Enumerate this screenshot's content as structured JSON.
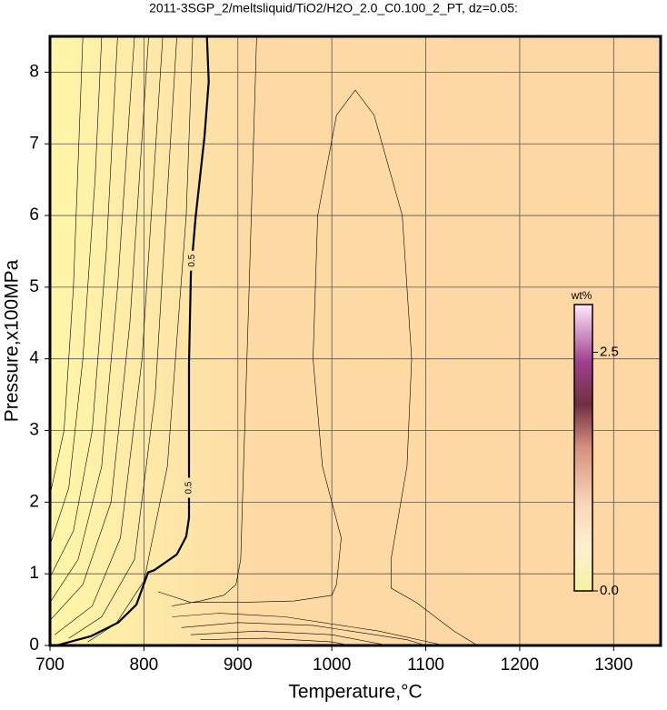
{
  "chart_data": {
    "type": "contour",
    "title": "2011-3SGP_2/meltsliquid/TiO2/H2O_2.0_C0.100_2_PT, dz=0.05:",
    "xlabel": "Temperature,°C",
    "ylabel": "Pressure,x100MPa",
    "xlim": [
      700,
      1350
    ],
    "ylim": [
      0,
      8.5
    ],
    "xticks": [
      700,
      800,
      900,
      1000,
      1100,
      1200,
      1300
    ],
    "yticks": [
      0,
      1,
      2,
      3,
      4,
      5,
      6,
      7,
      8
    ],
    "grid": true,
    "colorbar": {
      "label": "wt%",
      "lim": [
        0,
        3
      ],
      "ticks": [
        {
          "value": 0,
          "label": "0.0"
        },
        2.5
      ]
    },
    "contours": [
      {
        "level": 0.5,
        "bold": true,
        "x": [
          707,
          743.5,
          772.5,
          792,
          804.5,
          811,
          835,
          845,
          848,
          848,
          850,
          855,
          864.5,
          869,
          867
        ],
        "y": [
          0,
          0.13,
          0.32,
          0.57,
          1.02,
          1.05,
          1.27,
          1.52,
          1.78,
          3.94,
          5.2,
          5.97,
          7.11,
          7.87,
          8.5
        ],
        "label_y": [
          5.37,
          2.2
        ]
      },
      {
        "x": [
          700,
          715,
          725,
          735
        ],
        "y": [
          2.1,
          3,
          5,
          8.5
        ]
      },
      {
        "x": [
          700,
          720,
          735,
          748,
          755
        ],
        "y": [
          1.4,
          2.2,
          4,
          6.5,
          8.5
        ]
      },
      {
        "x": [
          700,
          725,
          745,
          760,
          772
        ],
        "y": [
          0.95,
          1.6,
          3,
          5.5,
          8.5
        ]
      },
      {
        "x": [
          700,
          730,
          755,
          772,
          790
        ],
        "y": [
          0.6,
          1.2,
          2.5,
          5,
          8.5
        ]
      },
      {
        "x": [
          700,
          735,
          765,
          785,
          805
        ],
        "y": [
          0.35,
          0.85,
          2,
          4.5,
          8.5
        ]
      },
      {
        "x": [
          705,
          745,
          775,
          798,
          820
        ],
        "y": [
          0.15,
          0.55,
          1.5,
          4,
          8.5
        ]
      },
      {
        "x": [
          720,
          755,
          790,
          812,
          835
        ],
        "y": [
          0.1,
          0.4,
          1.2,
          3.5,
          8.5
        ]
      },
      {
        "x": [
          740,
          770,
          800,
          825,
          845,
          852
        ],
        "y": [
          0.05,
          0.3,
          0.9,
          2.5,
          6,
          8.5
        ]
      },
      {
        "x": [
          920,
          912,
          906,
          903,
          898,
          885,
          860,
          830
        ],
        "y": [
          8.5,
          5,
          2.5,
          1.2,
          0.85,
          0.7,
          0.62,
          0.55
        ]
      },
      {
        "x": [
          815,
          850,
          900,
          960,
          1000,
          1005,
          1010,
          990,
          980,
          985,
          1005,
          1025,
          1045,
          1075,
          1085,
          1080,
          1063,
          1063,
          1090,
          1130,
          1155
        ],
        "y": [
          0.75,
          0.6,
          0.6,
          0.62,
          0.7,
          0.85,
          1.5,
          2.5,
          4,
          6,
          7.4,
          7.75,
          7.4,
          6,
          4,
          2.5,
          1.2,
          0.8,
          0.6,
          0.2,
          0
        ]
      },
      {
        "x": [
          830,
          880,
          950,
          1050,
          1120
        ],
        "y": [
          0.4,
          0.45,
          0.4,
          0.2,
          0
        ]
      },
      {
        "x": [
          840,
          900,
          980,
          1080,
          1100
        ],
        "y": [
          0.25,
          0.32,
          0.28,
          0.08,
          0
        ]
      },
      {
        "x": [
          850,
          920,
          1000,
          1060
        ],
        "y": [
          0.15,
          0.2,
          0.15,
          0
        ]
      },
      {
        "x": [
          860,
          930,
          1000,
          1020
        ],
        "y": [
          0.08,
          0.1,
          0.05,
          0
        ]
      }
    ]
  }
}
